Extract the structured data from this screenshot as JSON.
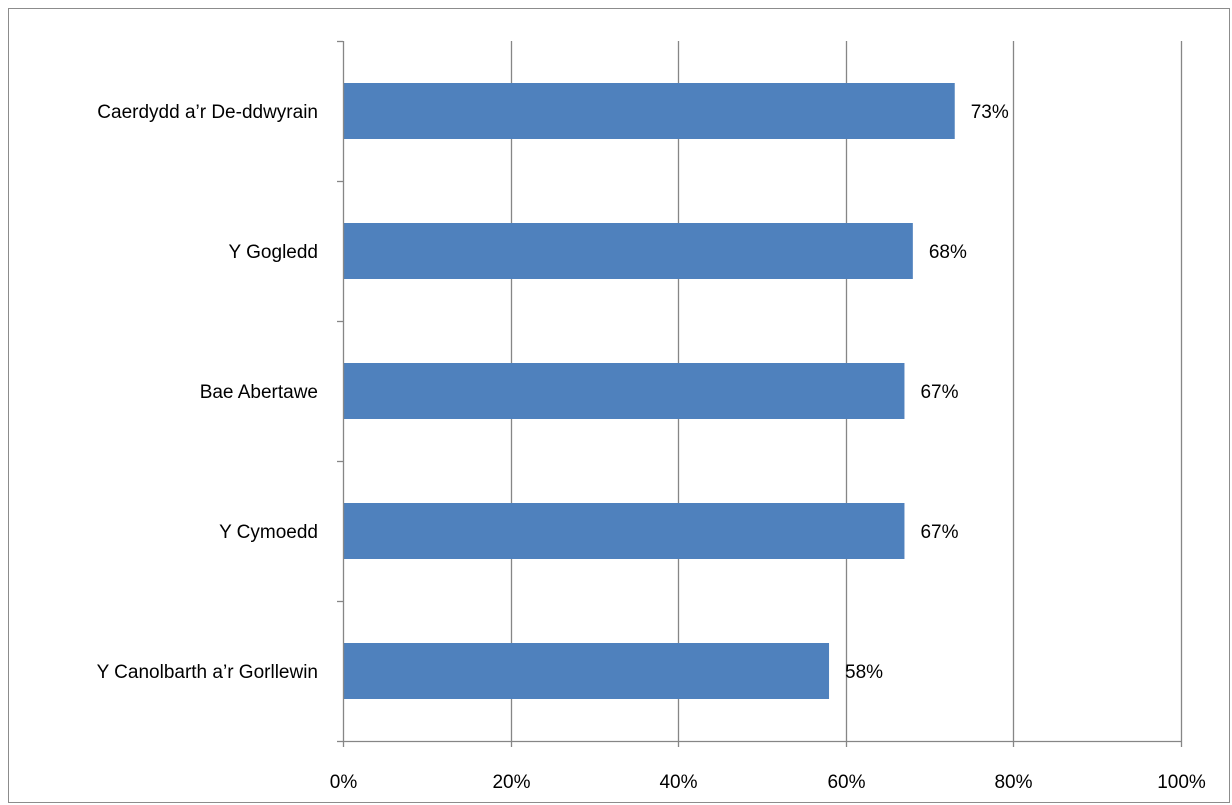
{
  "chart_data": {
    "type": "bar",
    "orientation": "horizontal",
    "title": "",
    "xlabel": "",
    "ylabel": "",
    "categories": [
      "Caerdydd a’r De-ddwyrain",
      "Y Gogledd",
      "Bae Abertawe",
      "Y Cymoedd",
      "Y Canolbarth a’r Gorllewin"
    ],
    "values": [
      73,
      68,
      67,
      67,
      58
    ],
    "data_labels": [
      "73%",
      "68%",
      "67%",
      "67%",
      "58%"
    ],
    "xlim": [
      0,
      100
    ],
    "x_ticks": [
      0,
      20,
      40,
      60,
      80,
      100
    ],
    "x_tick_labels": [
      "0%",
      "20%",
      "40%",
      "60%",
      "80%",
      "100%"
    ],
    "grid": "vertical",
    "legend": "none",
    "colors": {
      "bar": "#4f81bd",
      "grid": "#868686",
      "axis": "#868686",
      "frame": "#8c8c8c",
      "text": "#000000"
    }
  }
}
